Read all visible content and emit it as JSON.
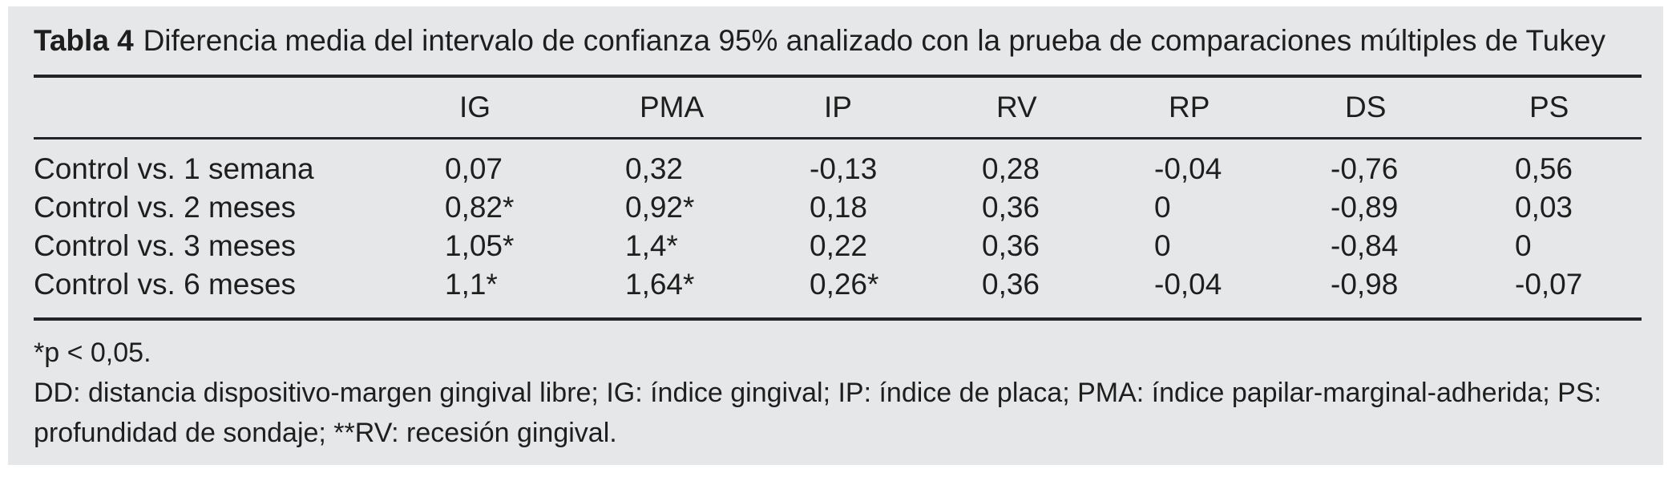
{
  "title": {
    "label": "Tabla 4",
    "text": "Diferencia media del intervalo de confianza 95% analizado con la prueba de comparaciones múltiples de Tukey"
  },
  "table": {
    "columns": [
      "IG",
      "PMA",
      "IP",
      "RV",
      "RP",
      "DS",
      "PS"
    ],
    "rows": [
      {
        "label": "Control vs. 1 semana",
        "values": [
          "0,07",
          "0,32",
          "-0,13",
          "0,28",
          "-0,04",
          "-0,76",
          "0,56"
        ]
      },
      {
        "label": "Control vs. 2 meses",
        "values": [
          "0,82*",
          "0,92*",
          "0,18",
          "0,36",
          "0",
          "-0,89",
          "0,03"
        ]
      },
      {
        "label": "Control vs. 3 meses",
        "values": [
          "1,05*",
          "1,4*",
          "0,22",
          "0,36",
          "0",
          "-0,84",
          "0"
        ]
      },
      {
        "label": "Control vs. 6 meses",
        "values": [
          "1,1*",
          "1,64*",
          "0,26*",
          "0,36",
          "-0,04",
          "-0,98",
          "-0,07"
        ]
      }
    ]
  },
  "footnotes": [
    "*p < 0,05.",
    "DD: distancia dispositivo-margen gingival libre; IG: índice gingival; IP: índice de placa; PMA: índice papilar-marginal-adherida; PS: profundidad de sondaje; **RV: recesión gingival."
  ],
  "colors": {
    "panel_background": "#e6e7e8",
    "page_background": "#ffffff",
    "text": "#1e1e1e",
    "rule": "#232327"
  }
}
